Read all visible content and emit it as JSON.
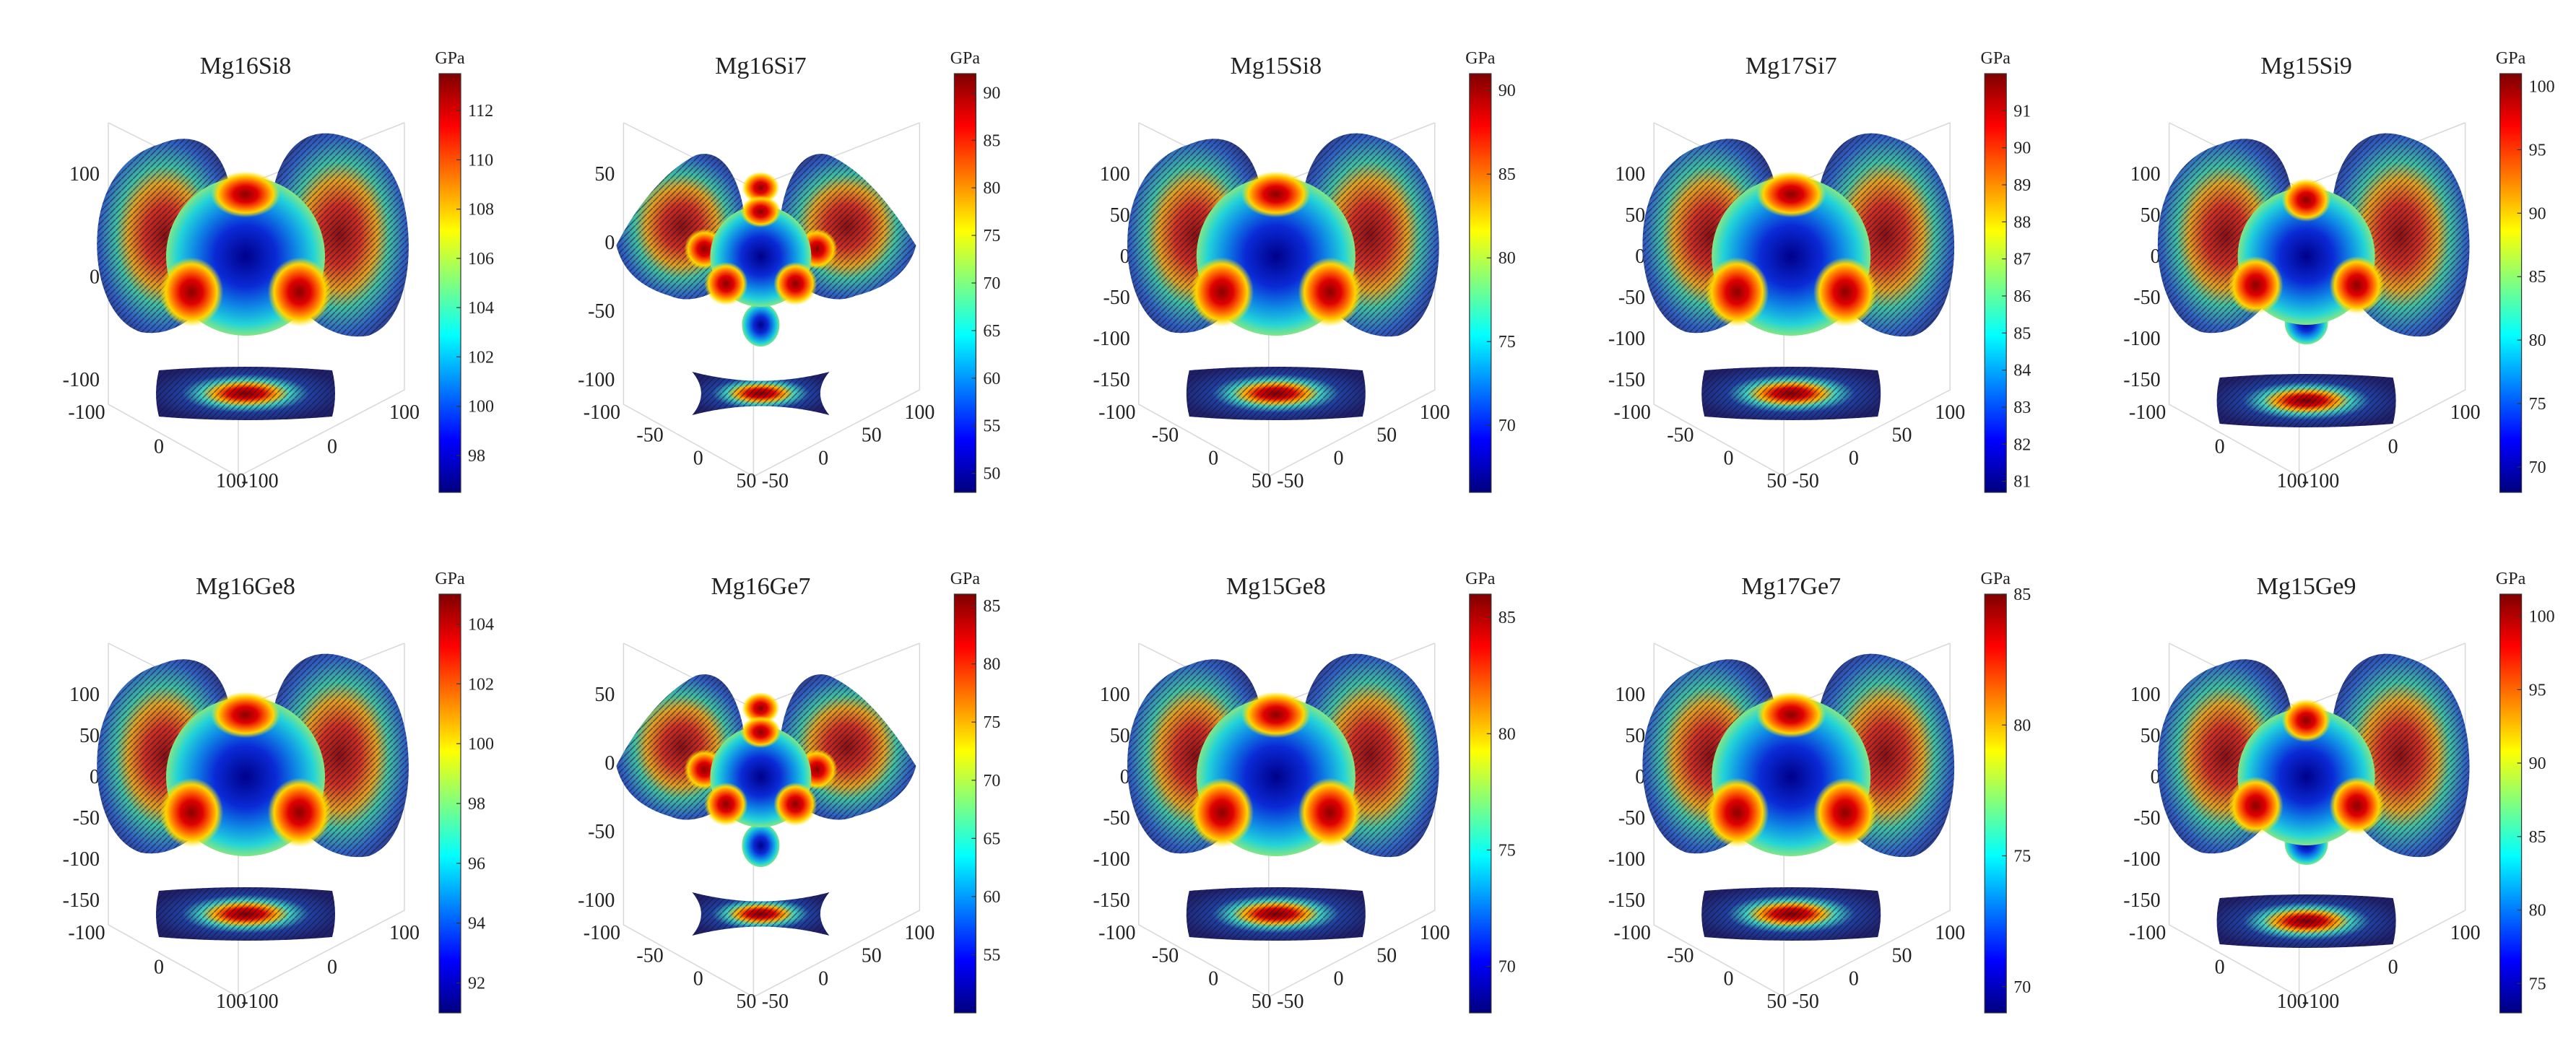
{
  "gradient_stops": [
    "#00007f",
    "#0000ff",
    "#007fff",
    "#00ffff",
    "#7fff7f",
    "#ffff00",
    "#ff7f00",
    "#ff0000",
    "#7f0000"
  ],
  "colorbar_unit": "GPa",
  "chart_data": [
    {
      "type": "other",
      "title": "Mg16Si8",
      "variant": "A",
      "colorbar": {
        "unit": "GPa",
        "range": [
          96.5,
          113.5
        ],
        "ticks": [
          98,
          100,
          102,
          104,
          106,
          108,
          110,
          112
        ]
      },
      "axes": {
        "z_ticks": [
          100,
          0,
          -100
        ],
        "x_ticks": [
          -100,
          0,
          100
        ],
        "y_ticks": [
          100,
          0,
          -100
        ]
      }
    },
    {
      "type": "other",
      "title": "Mg16Si7",
      "variant": "B",
      "colorbar": {
        "unit": "GPa",
        "range": [
          48,
          92
        ],
        "ticks": [
          50,
          55,
          60,
          65,
          70,
          75,
          80,
          85,
          90
        ]
      },
      "axes": {
        "z_ticks": [
          50,
          0,
          -50,
          -100
        ],
        "x_ticks": [
          -100,
          -50,
          0,
          50
        ],
        "y_ticks": [
          100,
          50,
          0,
          -50
        ]
      }
    },
    {
      "type": "other",
      "title": "Mg15Si8",
      "variant": "A",
      "colorbar": {
        "unit": "GPa",
        "range": [
          66,
          91
        ],
        "ticks": [
          70,
          75,
          80,
          85,
          90
        ]
      },
      "axes": {
        "z_ticks": [
          100,
          50,
          0,
          -50,
          -100,
          -150
        ],
        "x_ticks": [
          -100,
          -50,
          0,
          50
        ],
        "y_ticks": [
          100,
          50,
          0,
          -50
        ]
      }
    },
    {
      "type": "other",
      "title": "Mg17Si7",
      "variant": "A",
      "colorbar": {
        "unit": "GPa",
        "range": [
          80.7,
          92
        ],
        "ticks": [
          81,
          82,
          83,
          84,
          85,
          86,
          87,
          88,
          89,
          90,
          91
        ]
      },
      "axes": {
        "z_ticks": [
          100,
          50,
          0,
          -50,
          -100,
          -150
        ],
        "x_ticks": [
          -100,
          -50,
          0,
          50
        ],
        "y_ticks": [
          100,
          50,
          0,
          -50
        ]
      }
    },
    {
      "type": "other",
      "title": "Mg15Si9",
      "variant": "C",
      "colorbar": {
        "unit": "GPa",
        "range": [
          68,
          101
        ],
        "ticks": [
          70,
          75,
          80,
          85,
          90,
          95,
          100
        ]
      },
      "axes": {
        "z_ticks": [
          100,
          50,
          0,
          -50,
          -100,
          -150
        ],
        "x_ticks": [
          -100,
          0,
          100
        ],
        "y_ticks": [
          100,
          0,
          -100
        ]
      }
    },
    {
      "type": "other",
      "title": "Mg16Ge8",
      "variant": "A",
      "colorbar": {
        "unit": "GPa",
        "range": [
          91,
          105
        ],
        "ticks": [
          92,
          94,
          96,
          98,
          100,
          102,
          104
        ]
      },
      "axes": {
        "z_ticks": [
          100,
          50,
          0,
          -50,
          -100,
          -150
        ],
        "x_ticks": [
          -100,
          0,
          100
        ],
        "y_ticks": [
          100,
          0,
          -100
        ]
      }
    },
    {
      "type": "other",
      "title": "Mg16Ge7",
      "variant": "B",
      "colorbar": {
        "unit": "GPa",
        "range": [
          50,
          86
        ],
        "ticks": [
          55,
          60,
          65,
          70,
          75,
          80,
          85
        ]
      },
      "axes": {
        "z_ticks": [
          50,
          0,
          -50,
          -100
        ],
        "x_ticks": [
          -100,
          -50,
          0,
          50
        ],
        "y_ticks": [
          100,
          50,
          0,
          -50
        ]
      }
    },
    {
      "type": "other",
      "title": "Mg15Ge8",
      "variant": "A",
      "colorbar": {
        "unit": "GPa",
        "range": [
          68,
          86
        ],
        "ticks": [
          70,
          75,
          80,
          85
        ]
      },
      "axes": {
        "z_ticks": [
          100,
          50,
          0,
          -50,
          -100,
          -150
        ],
        "x_ticks": [
          -100,
          -50,
          0,
          50
        ],
        "y_ticks": [
          100,
          50,
          0,
          -50
        ]
      }
    },
    {
      "type": "other",
      "title": "Mg17Ge7",
      "variant": "A",
      "colorbar": {
        "unit": "GPa",
        "range": [
          69,
          85
        ],
        "ticks": [
          70,
          75,
          80,
          85
        ]
      },
      "axes": {
        "z_ticks": [
          100,
          50,
          0,
          -50,
          -100,
          -150
        ],
        "x_ticks": [
          -100,
          -50,
          0,
          50
        ],
        "y_ticks": [
          100,
          50,
          0,
          -50
        ]
      }
    },
    {
      "type": "other",
      "title": "Mg15Ge9",
      "variant": "C",
      "colorbar": {
        "unit": "GPa",
        "range": [
          73,
          101.5
        ],
        "ticks": [
          75,
          80,
          85,
          90,
          95,
          100
        ]
      },
      "axes": {
        "z_ticks": [
          100,
          50,
          0,
          -50,
          -100,
          -150
        ],
        "x_ticks": [
          -100,
          0,
          100
        ],
        "y_ticks": [
          100,
          0,
          -100
        ]
      }
    }
  ]
}
